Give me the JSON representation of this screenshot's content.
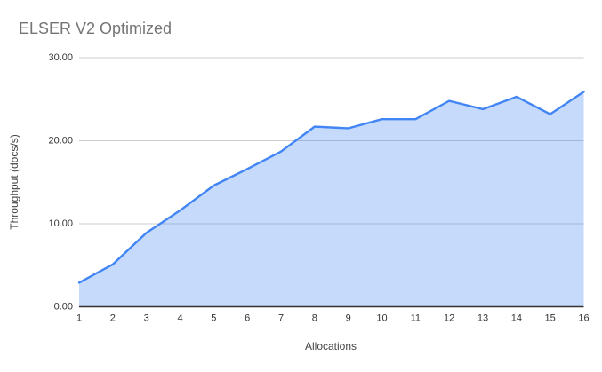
{
  "chart_data": {
    "type": "area",
    "title": "ELSER V2 Optimized",
    "xlabel": "Allocations",
    "ylabel": "Throughput (docs/s)",
    "x": [
      1,
      2,
      3,
      4,
      5,
      6,
      7,
      8,
      9,
      10,
      11,
      12,
      13,
      14,
      15,
      16
    ],
    "xtick_labels": [
      "1",
      "2",
      "3",
      "4",
      "5",
      "6",
      "7",
      "8",
      "9",
      "10",
      "11",
      "12",
      "13",
      "14",
      "15",
      "16"
    ],
    "series": [
      {
        "name": "Throughput (docs/s)",
        "values": [
          2.9,
          5.1,
          8.9,
          11.6,
          14.6,
          16.6,
          18.7,
          21.7,
          21.5,
          22.6,
          22.6,
          24.8,
          23.8,
          25.3,
          23.2,
          25.9
        ]
      }
    ],
    "ylim": [
      0,
      30
    ],
    "yticks": [
      0,
      10,
      20,
      30
    ],
    "ytick_labels": [
      "0.00",
      "10.00",
      "20.00",
      "30.00"
    ],
    "grid": true,
    "legend": "none",
    "colors": {
      "line": "#4285f4",
      "fill": "rgba(66,133,244,0.3)",
      "gridline": "#cccccc",
      "axis_line": "#333333",
      "tick_text": "#333333",
      "title_text": "#757575",
      "axis_title_text": "#444444",
      "background": "#ffffff"
    }
  }
}
